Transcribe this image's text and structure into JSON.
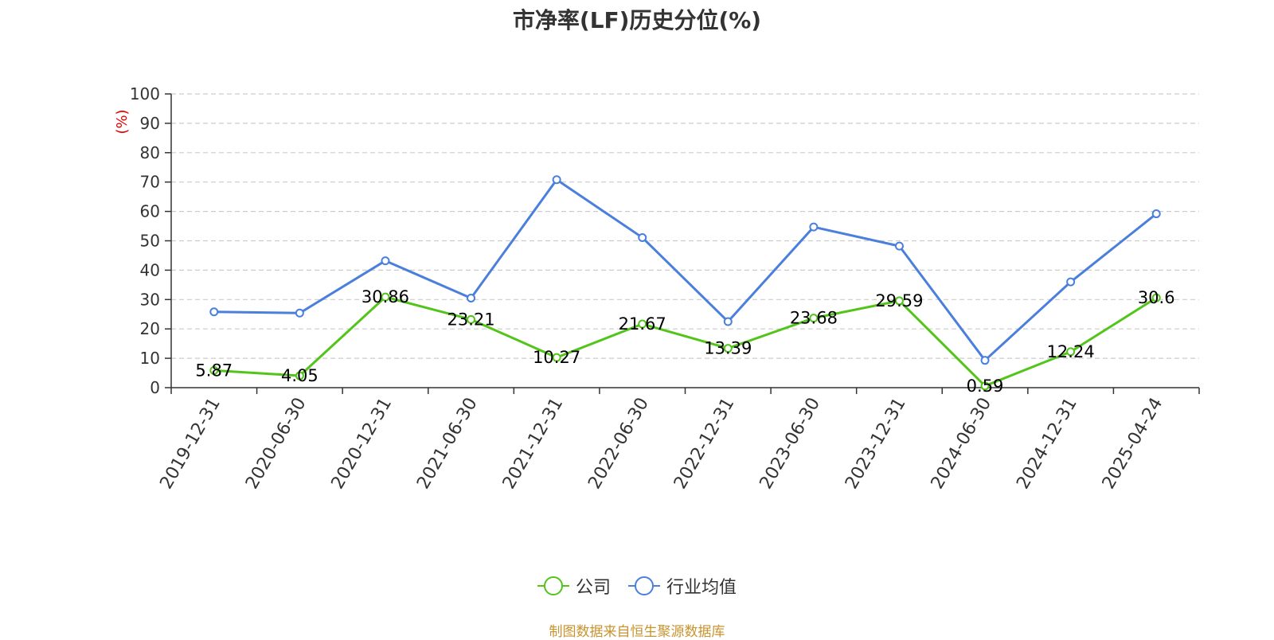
{
  "title": "市净率(LF)历史分位(%)",
  "y_axis_unit": "(%)",
  "source_note": "制图数据来自恒生聚源数据库",
  "colors": {
    "company": "#52c41a",
    "industry": "#4a7fdc",
    "unit_label": "#e60000",
    "source": "#c9932e"
  },
  "chart_data": {
    "type": "line",
    "title": "市净率(LF)历史分位(%)",
    "ylabel": "(%)",
    "xlabel": "",
    "ylim": [
      0,
      100
    ],
    "y_ticks": [
      0,
      10,
      20,
      30,
      40,
      50,
      60,
      70,
      80,
      90,
      100
    ],
    "grid": true,
    "legend_position": "bottom",
    "categories": [
      "2019-12-31",
      "2020-06-30",
      "2020-12-31",
      "2021-06-30",
      "2021-12-31",
      "2022-06-30",
      "2022-12-31",
      "2023-06-30",
      "2023-12-31",
      "2024-06-30",
      "2024-12-31",
      "2025-04-24"
    ],
    "series": [
      {
        "name": "公司",
        "color": "#52c41a",
        "show_labels": true,
        "values": [
          5.87,
          4.05,
          30.86,
          23.21,
          10.27,
          21.67,
          13.39,
          23.68,
          29.59,
          0.59,
          12.24,
          30.6
        ]
      },
      {
        "name": "行业均值",
        "color": "#4a7fdc",
        "show_labels": false,
        "values": [
          25.8,
          25.4,
          43.2,
          30.5,
          70.8,
          51.1,
          22.5,
          54.7,
          48.2,
          9.3,
          36.0,
          59.2
        ]
      }
    ]
  }
}
